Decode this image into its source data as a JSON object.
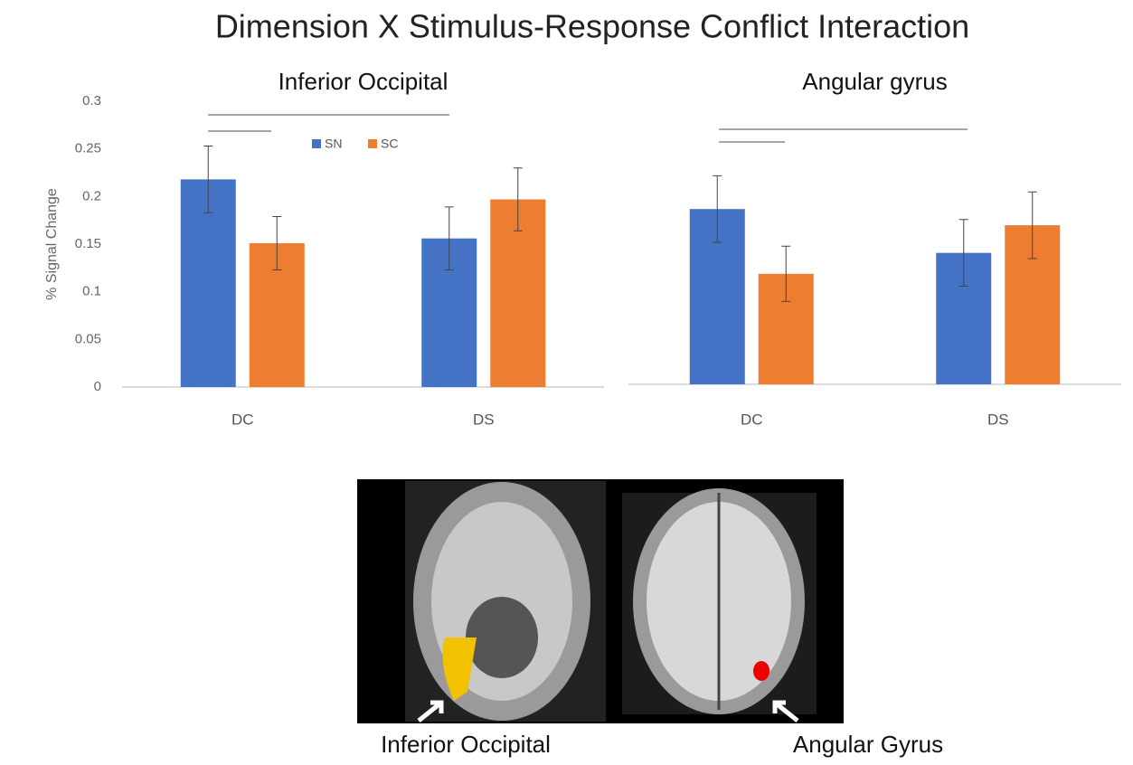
{
  "title": "Dimension X Stimulus-Response Conflict Interaction",
  "chart_data": [
    {
      "type": "bar",
      "title": "Inferior Occipital",
      "y_label": "% Signal Change",
      "categories": [
        "DC",
        "DS"
      ],
      "series": [
        {
          "name": "SN",
          "color": "#4472c4",
          "values": [
            0.218,
            0.156
          ],
          "errors": [
            0.035,
            0.033
          ]
        },
        {
          "name": "SC",
          "color": "#ed7d31",
          "values": [
            0.151,
            0.197
          ],
          "errors": [
            0.028,
            0.033
          ]
        }
      ],
      "ylim": [
        0,
        0.3
      ],
      "yticks": [
        0,
        0.05,
        0.1,
        0.15,
        0.2,
        0.25,
        0.3
      ],
      "legend": "top"
    },
    {
      "type": "bar",
      "title": "Angular gyrus",
      "categories": [
        "DC",
        "DS"
      ],
      "series": [
        {
          "name": "SN",
          "color": "#4472c4",
          "values": [
            0.184,
            0.138
          ],
          "errors": [
            0.035,
            0.035
          ]
        },
        {
          "name": "SC",
          "color": "#ed7d31",
          "values": [
            0.116,
            0.167
          ],
          "errors": [
            0.029,
            0.035
          ]
        }
      ],
      "ylim": [
        0,
        0.3
      ]
    }
  ],
  "brain_image": {
    "labels": [
      "Inferior Occipital",
      "Angular Gyrus"
    ]
  }
}
